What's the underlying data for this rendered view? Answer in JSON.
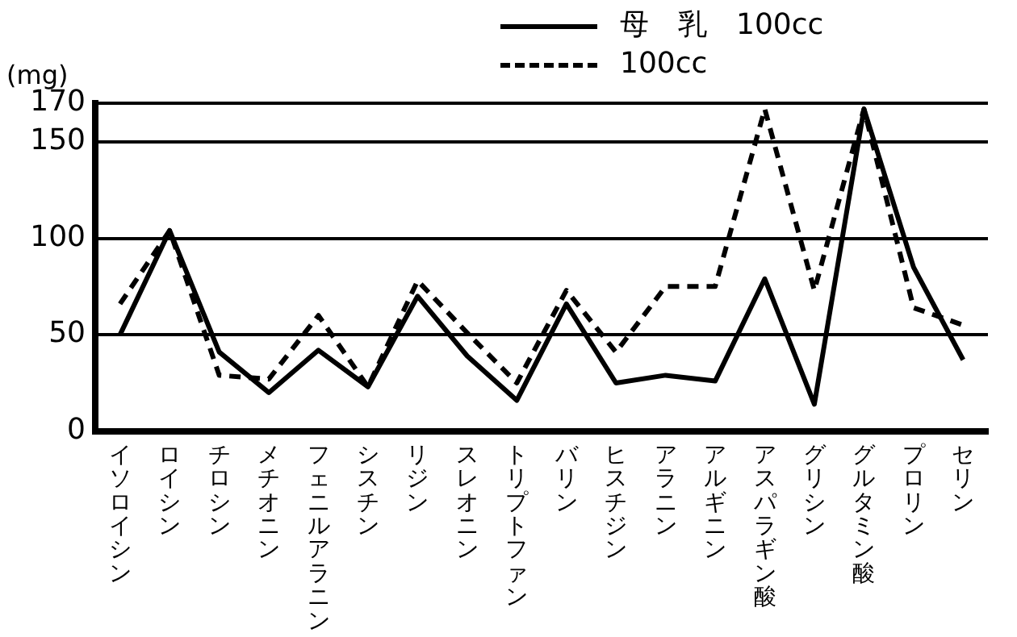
{
  "chart_data": {
    "type": "line",
    "ylabel": "(mg)",
    "categories": [
      "イソロイシン",
      "ロイシン",
      "チロシン",
      "メチオニン",
      "フェニルアラニン",
      "シスチン",
      "リジン",
      "スレオニン",
      "トリプトファン",
      "バリン",
      "ヒスチジン",
      "アラニン",
      "アルギニン",
      "アスパラギン酸",
      "グリシン",
      "グルタミン酸",
      "プロリン",
      "セリン"
    ],
    "series": [
      {
        "name": "母　乳　100cc",
        "color": "#000000",
        "line_style": "solid",
        "values": [
          50,
          104,
          41,
          20,
          42,
          23,
          70,
          39,
          16,
          66,
          25,
          29,
          26,
          79,
          14,
          167,
          85,
          37
        ]
      },
      {
        "name": "100cc",
        "color": "#000000",
        "line_style": "dashed",
        "values": [
          66,
          104,
          29,
          27,
          60,
          23,
          78,
          51,
          25,
          73,
          41,
          75,
          75,
          167,
          73,
          167,
          64,
          55
        ]
      }
    ],
    "ylim": [
      0,
      170
    ],
    "yticks": [
      0,
      50,
      100,
      150,
      170
    ],
    "grid": "y",
    "legend": "top right",
    "marker": "none"
  }
}
